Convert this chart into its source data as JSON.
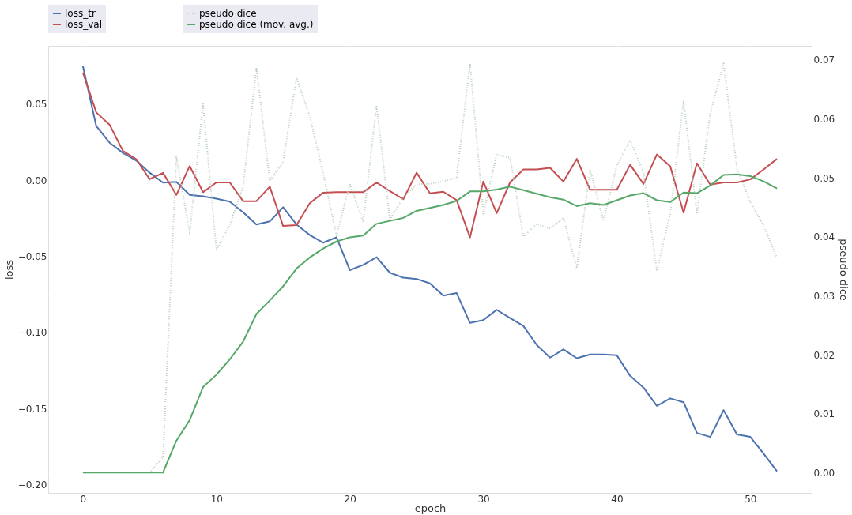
{
  "chart_data": {
    "type": "line",
    "xlabel": "epoch",
    "ylabel": "loss",
    "y2label": "pseudo dice",
    "x": [
      0,
      1,
      2,
      3,
      4,
      5,
      6,
      7,
      8,
      9,
      10,
      11,
      12,
      13,
      14,
      15,
      16,
      17,
      18,
      19,
      20,
      21,
      22,
      23,
      24,
      25,
      26,
      27,
      28,
      29,
      30,
      31,
      32,
      33,
      34,
      35,
      36,
      37,
      38,
      39,
      40,
      41,
      42,
      43,
      44,
      45,
      46,
      47,
      48,
      49,
      50,
      51,
      52
    ],
    "xlim": [
      -2.6,
      54.6
    ],
    "xticks": [
      0,
      10,
      20,
      30,
      40,
      50
    ],
    "ylim": [
      -0.2054,
      0.0884
    ],
    "yticks": [
      {
        "value": -0.2,
        "label": "−0.20"
      },
      {
        "value": -0.15,
        "label": "−0.15"
      },
      {
        "value": -0.1,
        "label": "−0.10"
      },
      {
        "value": -0.05,
        "label": "−0.05"
      },
      {
        "value": 0.0,
        "label": "0.00"
      },
      {
        "value": 0.05,
        "label": "0.05"
      }
    ],
    "y2lim": [
      -0.00345,
      0.0724
    ],
    "y2ticks": [
      {
        "value": 0.0,
        "label": "0.00"
      },
      {
        "value": 0.01,
        "label": "0.01"
      },
      {
        "value": 0.02,
        "label": "0.02"
      },
      {
        "value": 0.03,
        "label": "0.03"
      },
      {
        "value": 0.04,
        "label": "0.04"
      },
      {
        "value": 0.05,
        "label": "0.05"
      },
      {
        "value": 0.06,
        "label": "0.06"
      },
      {
        "value": 0.07,
        "label": "0.07"
      }
    ],
    "grid": true,
    "legend": "top left",
    "series": [
      {
        "name": "loss_tr",
        "color": "#4c72b0",
        "axis": "y",
        "line_style": "solid",
        "values": [
          0.075,
          0.0356,
          0.0247,
          0.018,
          0.013,
          0.005,
          -0.0015,
          -0.001,
          -0.0096,
          -0.0105,
          -0.012,
          -0.014,
          -0.021,
          -0.029,
          -0.027,
          -0.0177,
          -0.029,
          -0.036,
          -0.041,
          -0.0375,
          -0.059,
          -0.0556,
          -0.0505,
          -0.0607,
          -0.064,
          -0.0648,
          -0.0677,
          -0.0758,
          -0.0741,
          -0.0937,
          -0.0918,
          -0.0851,
          -0.0905,
          -0.0957,
          -0.1082,
          -0.1165,
          -0.1111,
          -0.1169,
          -0.1144,
          -0.1144,
          -0.115,
          -0.1285,
          -0.1362,
          -0.1482,
          -0.1433,
          -0.1458,
          -0.166,
          -0.1686,
          -0.151,
          -0.167,
          -0.1686,
          -0.1796,
          -0.1912
        ]
      },
      {
        "name": "loss_val",
        "color": "#c44e52",
        "axis": "y",
        "line_style": "solid",
        "values": [
          0.0708,
          0.0446,
          0.0365,
          0.0193,
          0.0139,
          0.0007,
          0.0049,
          -0.0096,
          0.0094,
          -0.0078,
          -0.0014,
          -0.0014,
          -0.0137,
          -0.0137,
          -0.0042,
          -0.03,
          -0.0294,
          -0.015,
          -0.0081,
          -0.0078,
          -0.0078,
          -0.0078,
          -0.0014,
          -0.0071,
          -0.0124,
          0.005,
          -0.0085,
          -0.0075,
          -0.013,
          -0.0375,
          -0.0008,
          -0.0216,
          -0.0014,
          0.0072,
          0.0072,
          0.0082,
          -0.0008,
          0.0141,
          -0.0062,
          -0.0062,
          -0.0062,
          0.0102,
          -0.0024,
          0.017,
          0.0093,
          -0.0213,
          0.0112,
          -0.0028,
          -0.0014,
          -0.0014,
          0.0006,
          0.0072,
          0.0141
        ]
      },
      {
        "name": "pseudo dice",
        "color": "#b9cfbf",
        "axis": "y2",
        "line_style": "dotted",
        "values": [
          0,
          0,
          0,
          0,
          0,
          0,
          0.0026,
          0.0537,
          0.0406,
          0.0626,
          0.0378,
          0.042,
          0.0485,
          0.0687,
          0.0495,
          0.0527,
          0.067,
          0.0604,
          0.0508,
          0.0402,
          0.049,
          0.0425,
          0.0623,
          0.0429,
          0.0467,
          0.0489,
          0.049,
          0.0494,
          0.0501,
          0.0694,
          0.0439,
          0.054,
          0.0534,
          0.04,
          0.0422,
          0.0414,
          0.0432,
          0.0347,
          0.0514,
          0.0427,
          0.0521,
          0.0564,
          0.0509,
          0.0342,
          0.0439,
          0.0631,
          0.0439,
          0.0609,
          0.0694,
          0.0516,
          0.0459,
          0.0419,
          0.0364
        ]
      },
      {
        "name": "pseudo dice (mov. avg.)",
        "color": "#55a868",
        "axis": "y2",
        "line_style": "solid",
        "values": [
          0,
          0,
          0,
          0,
          0,
          0,
          0,
          0.0054,
          0.0089,
          0.0145,
          0.0166,
          0.0192,
          0.0222,
          0.0269,
          0.0292,
          0.0316,
          0.0346,
          0.0365,
          0.038,
          0.0392,
          0.0399,
          0.0402,
          0.0422,
          0.0427,
          0.0432,
          0.0444,
          0.0449,
          0.0454,
          0.0461,
          0.0477,
          0.0477,
          0.048,
          0.0485,
          0.0479,
          0.0473,
          0.0467,
          0.0463,
          0.0452,
          0.0457,
          0.0454,
          0.0462,
          0.047,
          0.0474,
          0.0462,
          0.0459,
          0.0475,
          0.0474,
          0.0487,
          0.0505,
          0.0506,
          0.0503,
          0.0494,
          0.0482
        ]
      }
    ]
  }
}
